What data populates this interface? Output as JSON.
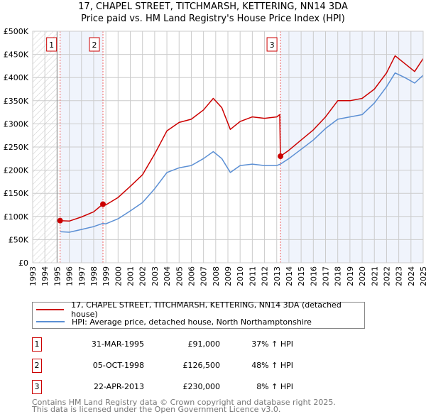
{
  "chart_data": {
    "type": "line",
    "title": "17, CHAPEL STREET, TITCHMARSH, KETTERING, NN14 3DA",
    "subtitle": "Price paid vs. HM Land Registry's House Price Index (HPI)",
    "xlim": [
      1993,
      2025
    ],
    "ylim": [
      0,
      500000
    ],
    "x_ticks": [
      "1993",
      "1994",
      "1995",
      "1996",
      "1997",
      "1998",
      "1999",
      "2000",
      "2001",
      "2002",
      "2003",
      "2004",
      "2005",
      "2006",
      "2007",
      "2008",
      "2009",
      "2010",
      "2011",
      "2012",
      "2013",
      "2014",
      "2015",
      "2016",
      "2017",
      "2018",
      "2019",
      "2020",
      "2021",
      "2022",
      "2023",
      "2024",
      "2025"
    ],
    "y_ticks": [
      {
        "v": 0,
        "label": "£0"
      },
      {
        "v": 50000,
        "label": "£50K"
      },
      {
        "v": 100000,
        "label": "£100K"
      },
      {
        "v": 150000,
        "label": "£150K"
      },
      {
        "v": 200000,
        "label": "£200K"
      },
      {
        "v": 250000,
        "label": "£250K"
      },
      {
        "v": 300000,
        "label": "£300K"
      },
      {
        "v": 350000,
        "label": "£350K"
      },
      {
        "v": 400000,
        "label": "£400K"
      },
      {
        "v": 450000,
        "label": "£450K"
      },
      {
        "v": 500000,
        "label": "£500K"
      }
    ],
    "grid": true,
    "series": [
      {
        "name": "17, CHAPEL STREET, TITCHMARSH, KETTERING, NN14 3DA (detached house)",
        "color": "#cc0000",
        "x": [
          1995.25,
          1996,
          1997,
          1998,
          1998.75,
          1999,
          2000,
          2001,
          2002,
          2003,
          2004,
          2005,
          2006,
          2007,
          2007.8,
          2008.5,
          2009.2,
          2010,
          2011,
          2012,
          2013,
          2013.25,
          2013.3,
          2014,
          2015,
          2016,
          2017,
          2018,
          2019,
          2020,
          2021,
          2022,
          2022.7,
          2023.5,
          2024.3,
          2025
        ],
        "y": [
          91000,
          90000,
          99000,
          110000,
          126500,
          125000,
          141000,
          165000,
          190000,
          235000,
          285000,
          303000,
          310000,
          330000,
          355000,
          335000,
          288000,
          305000,
          315000,
          312000,
          315000,
          320000,
          230000,
          243000,
          265000,
          287000,
          315000,
          350000,
          350000,
          355000,
          375000,
          410000,
          447000,
          430000,
          413000,
          441000
        ]
      },
      {
        "name": "HPI: Average price, detached house, North Northamptonshire",
        "color": "#5b8fd4",
        "x": [
          1995.25,
          1996,
          1997,
          1998,
          1998.75,
          1999,
          2000,
          2001,
          2002,
          2003,
          2004,
          2005,
          2006,
          2007,
          2007.8,
          2008.5,
          2009.2,
          2010,
          2011,
          2012,
          2013,
          2013.3,
          2014,
          2015,
          2016,
          2017,
          2018,
          2019,
          2020,
          2021,
          2022,
          2022.7,
          2023.5,
          2024.3,
          2025
        ],
        "y": [
          67000,
          66000,
          72000,
          78000,
          85000,
          84000,
          95000,
          112000,
          130000,
          160000,
          195000,
          205000,
          210000,
          225000,
          240000,
          225000,
          195000,
          210000,
          213000,
          210000,
          210000,
          213000,
          225000,
          245000,
          265000,
          290000,
          310000,
          315000,
          320000,
          345000,
          380000,
          410000,
          400000,
          388000,
          405000
        ]
      }
    ],
    "sales": [
      {
        "label": "1",
        "x": 1995.25,
        "y": 91000,
        "date": "31-MAR-1995",
        "price": "£91,000",
        "hpi": "37% ↑ HPI"
      },
      {
        "label": "2",
        "x": 1998.76,
        "y": 126500,
        "date": "05-OCT-1998",
        "price": "£126,500",
        "hpi": "48% ↑ HPI"
      },
      {
        "label": "3",
        "x": 2013.31,
        "y": 230000,
        "date": "22-APR-2013",
        "price": "£230,000",
        "hpi": "8% ↑ HPI"
      }
    ]
  },
  "footer": {
    "line1": "Contains HM Land Registry data © Crown copyright and database right 2025.",
    "line2": "This data is licensed under the Open Government Licence v3.0."
  }
}
